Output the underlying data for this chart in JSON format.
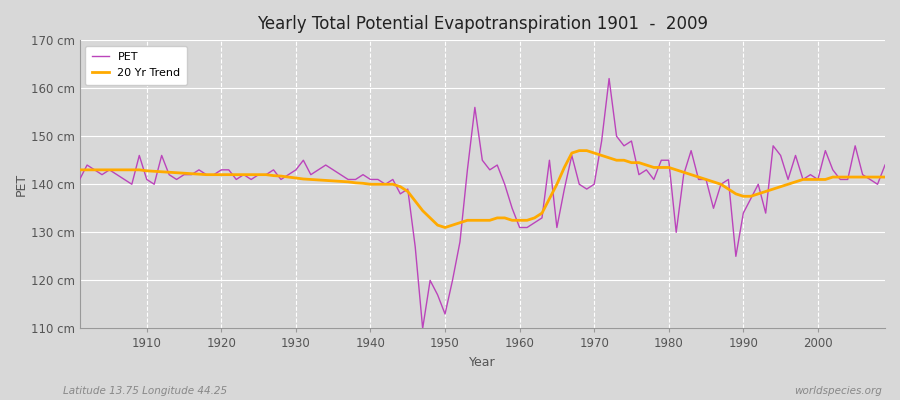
{
  "title": "Yearly Total Potential Evapotranspiration 1901  -  2009",
  "xlabel": "Year",
  "ylabel": "PET",
  "xlim": [
    1901,
    2009
  ],
  "ylim": [
    110,
    170
  ],
  "yticks": [
    110,
    120,
    130,
    140,
    150,
    160,
    170
  ],
  "ytick_labels": [
    "110 cm",
    "120 cm",
    "130 cm",
    "140 cm",
    "150 cm",
    "160 cm",
    "170 cm"
  ],
  "xticks": [
    1910,
    1920,
    1930,
    1940,
    1950,
    1960,
    1970,
    1980,
    1990,
    2000
  ],
  "bg_color": "#d8d8d8",
  "plot_bg_color": "#d8d8d8",
  "grid_color": "#ffffff",
  "pet_color": "#bb44bb",
  "trend_color": "#ffaa00",
  "legend_pet": "PET",
  "legend_trend": "20 Yr Trend",
  "footnote_left": "Latitude 13.75 Longitude 44.25",
  "footnote_right": "worldspecies.org",
  "pet_years": [
    1901,
    1902,
    1903,
    1904,
    1905,
    1906,
    1907,
    1908,
    1909,
    1910,
    1911,
    1912,
    1913,
    1914,
    1915,
    1916,
    1917,
    1918,
    1919,
    1920,
    1921,
    1922,
    1923,
    1924,
    1925,
    1926,
    1927,
    1928,
    1929,
    1930,
    1931,
    1932,
    1933,
    1934,
    1935,
    1936,
    1937,
    1938,
    1939,
    1940,
    1941,
    1942,
    1943,
    1944,
    1945,
    1946,
    1947,
    1948,
    1949,
    1950,
    1951,
    1952,
    1953,
    1954,
    1955,
    1956,
    1957,
    1958,
    1959,
    1960,
    1961,
    1962,
    1963,
    1964,
    1965,
    1966,
    1967,
    1968,
    1969,
    1970,
    1971,
    1972,
    1973,
    1974,
    1975,
    1976,
    1977,
    1978,
    1979,
    1980,
    1981,
    1982,
    1983,
    1984,
    1985,
    1986,
    1987,
    1988,
    1989,
    1990,
    1991,
    1992,
    1993,
    1994,
    1995,
    1996,
    1997,
    1998,
    1999,
    2000,
    2001,
    2002,
    2003,
    2004,
    2005,
    2006,
    2007,
    2008,
    2009
  ],
  "pet_values": [
    141,
    144,
    143,
    142,
    143,
    142,
    141,
    140,
    146,
    141,
    140,
    146,
    142,
    141,
    142,
    142,
    143,
    142,
    142,
    143,
    143,
    141,
    142,
    141,
    142,
    142,
    143,
    141,
    142,
    143,
    145,
    142,
    143,
    144,
    143,
    142,
    141,
    141,
    142,
    141,
    141,
    140,
    141,
    138,
    139,
    127,
    110,
    120,
    117,
    113,
    120,
    128,
    143,
    156,
    145,
    143,
    144,
    140,
    135,
    131,
    131,
    132,
    133,
    145,
    131,
    139,
    146,
    140,
    139,
    140,
    149,
    162,
    150,
    148,
    149,
    142,
    143,
    141,
    145,
    145,
    130,
    142,
    147,
    141,
    141,
    135,
    140,
    141,
    125,
    134,
    137,
    140,
    134,
    148,
    146,
    141,
    146,
    141,
    142,
    141,
    147,
    143,
    141,
    141,
    148,
    142,
    141,
    140,
    144
  ],
  "trend_years": [
    1901,
    1902,
    1903,
    1904,
    1905,
    1906,
    1907,
    1908,
    1909,
    1910,
    1911,
    1912,
    1913,
    1914,
    1915,
    1916,
    1917,
    1918,
    1919,
    1920,
    1921,
    1922,
    1923,
    1924,
    1925,
    1926,
    1927,
    1928,
    1929,
    1930,
    1931,
    1932,
    1933,
    1934,
    1935,
    1936,
    1937,
    1938,
    1939,
    1940,
    1941,
    1942,
    1943,
    1944,
    1945,
    1946,
    1947,
    1948,
    1949,
    1950,
    1951,
    1952,
    1953,
    1954,
    1955,
    1956,
    1957,
    1958,
    1959,
    1960,
    1961,
    1962,
    1963,
    1964,
    1965,
    1966,
    1967,
    1968,
    1969,
    1970,
    1971,
    1972,
    1973,
    1974,
    1975,
    1976,
    1977,
    1978,
    1979,
    1980,
    1981,
    1982,
    1983,
    1984,
    1985,
    1986,
    1987,
    1988,
    1989,
    1990,
    1991,
    1992,
    1993,
    1994,
    1995,
    1996,
    1997,
    1998,
    1999,
    2000,
    2001,
    2002,
    2003,
    2004,
    2005,
    2006,
    2007,
    2008,
    2009
  ],
  "trend_values": [
    143.0,
    143.0,
    143.0,
    143.0,
    143.0,
    143.0,
    143.0,
    143.0,
    143.0,
    142.8,
    142.7,
    142.6,
    142.5,
    142.4,
    142.3,
    142.2,
    142.1,
    142.0,
    142.0,
    142.0,
    142.0,
    142.0,
    142.0,
    142.0,
    142.0,
    142.0,
    141.8,
    141.7,
    141.5,
    141.3,
    141.1,
    141.0,
    140.9,
    140.8,
    140.7,
    140.6,
    140.5,
    140.3,
    140.2,
    140.0,
    140.0,
    140.0,
    140.0,
    139.5,
    138.5,
    136.5,
    134.5,
    133.0,
    131.5,
    131.0,
    131.5,
    132.0,
    132.5,
    132.5,
    132.5,
    132.5,
    133.0,
    133.0,
    132.5,
    132.5,
    132.5,
    133.0,
    134.0,
    137.0,
    140.0,
    143.5,
    146.5,
    147.0,
    147.0,
    146.5,
    146.0,
    145.5,
    145.0,
    145.0,
    144.5,
    144.5,
    144.0,
    143.5,
    143.5,
    143.5,
    143.0,
    142.5,
    142.0,
    141.5,
    141.0,
    140.5,
    140.0,
    139.0,
    138.0,
    137.5,
    137.5,
    138.0,
    138.5,
    139.0,
    139.5,
    140.0,
    140.5,
    141.0,
    141.0,
    141.0,
    141.0,
    141.5,
    141.5,
    141.5,
    141.5,
    141.5,
    141.5,
    141.5,
    141.5
  ]
}
